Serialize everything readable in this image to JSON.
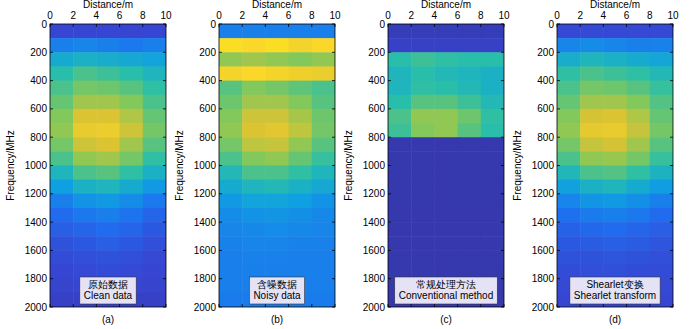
{
  "chart_data": [
    {
      "type": "heatmap",
      "title": "(a)",
      "annotations": [
        "原始数据",
        "Clean data"
      ],
      "x_label": "Distance/m",
      "y_label": "Frequency/MHz",
      "xlim": [
        0,
        10
      ],
      "xticks": [
        0,
        2,
        4,
        6,
        8,
        10
      ],
      "ylim": [
        2000,
        0
      ],
      "yticks": [
        0,
        200,
        400,
        600,
        800,
        1000,
        1200,
        1400,
        1600,
        1800,
        2000
      ],
      "zlim": [
        0,
        1
      ],
      "x_bins": [
        0,
        2,
        4,
        6,
        8,
        10
      ],
      "y_bins": [
        0,
        100,
        200,
        300,
        400,
        500,
        600,
        700,
        800,
        900,
        1000,
        1100,
        1200,
        1300,
        1400,
        1500,
        1600,
        1700,
        1800,
        1900,
        2000
      ],
      "cells": [
        [
          0.12,
          0.12,
          0.12,
          0.12,
          0.12
        ],
        [
          0.3,
          0.32,
          0.3,
          0.28,
          0.3
        ],
        [
          0.45,
          0.48,
          0.46,
          0.44,
          0.42
        ],
        [
          0.55,
          0.6,
          0.58,
          0.55,
          0.5
        ],
        [
          0.6,
          0.66,
          0.65,
          0.62,
          0.56
        ],
        [
          0.64,
          0.72,
          0.72,
          0.68,
          0.6
        ],
        [
          0.68,
          0.8,
          0.8,
          0.74,
          0.64
        ],
        [
          0.7,
          0.84,
          0.85,
          0.78,
          0.66
        ],
        [
          0.66,
          0.78,
          0.8,
          0.72,
          0.62
        ],
        [
          0.6,
          0.7,
          0.72,
          0.66,
          0.56
        ],
        [
          0.5,
          0.6,
          0.62,
          0.56,
          0.48
        ],
        [
          0.4,
          0.48,
          0.5,
          0.45,
          0.38
        ],
        [
          0.3,
          0.36,
          0.38,
          0.34,
          0.28
        ],
        [
          0.24,
          0.28,
          0.3,
          0.27,
          0.22
        ],
        [
          0.2,
          0.22,
          0.24,
          0.22,
          0.18
        ],
        [
          0.16,
          0.18,
          0.2,
          0.18,
          0.15
        ],
        [
          0.14,
          0.15,
          0.16,
          0.15,
          0.13
        ],
        [
          0.12,
          0.13,
          0.14,
          0.13,
          0.12
        ],
        [
          0.11,
          0.12,
          0.12,
          0.12,
          0.11
        ],
        [
          0.1,
          0.1,
          0.1,
          0.1,
          0.1
        ]
      ]
    },
    {
      "type": "heatmap",
      "title": "(b)",
      "annotations": [
        "含噪数据",
        "Noisy data"
      ],
      "x_label": "Distance/m",
      "y_label": "Frequency/MHz",
      "xlim": [
        0,
        10
      ],
      "xticks": [
        0,
        2,
        4,
        6,
        8,
        10
      ],
      "ylim": [
        2000,
        0
      ],
      "yticks": [
        0,
        200,
        400,
        600,
        800,
        1000,
        1200,
        1400,
        1600,
        1800,
        2000
      ],
      "zlim": [
        0,
        1
      ],
      "x_bins": [
        0,
        2,
        4,
        6,
        8,
        10
      ],
      "y_bins": [
        0,
        100,
        200,
        300,
        400,
        500,
        600,
        700,
        800,
        900,
        1000,
        1100,
        1200,
        1300,
        1400,
        1500,
        1600,
        1700,
        1800,
        1900,
        2000
      ],
      "cells": [
        [
          0.3,
          0.3,
          0.3,
          0.3,
          0.3
        ],
        [
          0.92,
          0.9,
          0.92,
          0.88,
          0.9
        ],
        [
          0.7,
          0.72,
          0.7,
          0.68,
          0.7
        ],
        [
          0.88,
          0.9,
          0.88,
          0.86,
          0.85
        ],
        [
          0.62,
          0.68,
          0.66,
          0.63,
          0.6
        ],
        [
          0.65,
          0.72,
          0.72,
          0.68,
          0.62
        ],
        [
          0.68,
          0.78,
          0.78,
          0.73,
          0.65
        ],
        [
          0.7,
          0.8,
          0.82,
          0.76,
          0.66
        ],
        [
          0.66,
          0.76,
          0.77,
          0.7,
          0.62
        ],
        [
          0.6,
          0.68,
          0.7,
          0.64,
          0.57
        ],
        [
          0.52,
          0.6,
          0.6,
          0.56,
          0.5
        ],
        [
          0.45,
          0.5,
          0.52,
          0.48,
          0.44
        ],
        [
          0.38,
          0.42,
          0.42,
          0.4,
          0.36
        ],
        [
          0.34,
          0.36,
          0.37,
          0.35,
          0.33
        ],
        [
          0.32,
          0.33,
          0.34,
          0.33,
          0.32
        ],
        [
          0.31,
          0.32,
          0.32,
          0.31,
          0.31
        ],
        [
          0.3,
          0.31,
          0.31,
          0.3,
          0.3
        ],
        [
          0.3,
          0.3,
          0.3,
          0.3,
          0.3
        ],
        [
          0.3,
          0.3,
          0.3,
          0.3,
          0.3
        ],
        [
          0.29,
          0.29,
          0.29,
          0.29,
          0.29
        ]
      ]
    },
    {
      "type": "heatmap",
      "title": "(c)",
      "annotations": [
        "常规处理方法",
        "Conventional method"
      ],
      "x_label": "Distance/m",
      "y_label": "Frequency/MHz",
      "xlim": [
        0,
        10
      ],
      "xticks": [
        0,
        2,
        4,
        6,
        8,
        10
      ],
      "ylim": [
        2000,
        0
      ],
      "yticks": [
        0,
        200,
        400,
        600,
        800,
        1000,
        1200,
        1400,
        1600,
        1800,
        2000
      ],
      "zlim": [
        0,
        1
      ],
      "x_bins": [
        0,
        2,
        4,
        6,
        8,
        10
      ],
      "y_bins": [
        0,
        100,
        200,
        300,
        400,
        500,
        600,
        700,
        800,
        900,
        1000,
        1100,
        1200,
        1300,
        1400,
        1500,
        1600,
        1700,
        1800,
        1900,
        2000
      ],
      "cells": [
        [
          0.08,
          0.08,
          0.08,
          0.08,
          0.08
        ],
        [
          0.1,
          0.1,
          0.1,
          0.1,
          0.1
        ],
        [
          0.55,
          0.58,
          0.56,
          0.55,
          0.55
        ],
        [
          0.5,
          0.55,
          0.52,
          0.5,
          0.48
        ],
        [
          0.5,
          0.56,
          0.55,
          0.52,
          0.48
        ],
        [
          0.55,
          0.62,
          0.62,
          0.58,
          0.52
        ],
        [
          0.6,
          0.7,
          0.7,
          0.65,
          0.56
        ],
        [
          0.58,
          0.68,
          0.7,
          0.62,
          0.55
        ],
        [
          0.06,
          0.06,
          0.06,
          0.06,
          0.06
        ],
        [
          0.06,
          0.06,
          0.06,
          0.06,
          0.06
        ],
        [
          0.06,
          0.06,
          0.06,
          0.06,
          0.06
        ],
        [
          0.06,
          0.06,
          0.06,
          0.06,
          0.06
        ],
        [
          0.06,
          0.06,
          0.06,
          0.06,
          0.06
        ],
        [
          0.06,
          0.06,
          0.06,
          0.06,
          0.06
        ],
        [
          0.06,
          0.06,
          0.06,
          0.06,
          0.06
        ],
        [
          0.06,
          0.06,
          0.06,
          0.06,
          0.06
        ],
        [
          0.06,
          0.06,
          0.06,
          0.06,
          0.06
        ],
        [
          0.06,
          0.06,
          0.06,
          0.06,
          0.06
        ],
        [
          0.06,
          0.06,
          0.06,
          0.06,
          0.06
        ],
        [
          0.06,
          0.06,
          0.06,
          0.06,
          0.06
        ]
      ]
    },
    {
      "type": "heatmap",
      "title": "(d)",
      "annotations": [
        "Shearlet变换",
        "Shearlet transform"
      ],
      "x_label": "Distance/m",
      "y_label": "Frequency/MHz",
      "xlim": [
        0,
        10
      ],
      "xticks": [
        0,
        2,
        4,
        6,
        8,
        10
      ],
      "ylim": [
        2000,
        0
      ],
      "yticks": [
        0,
        200,
        400,
        600,
        800,
        1000,
        1200,
        1400,
        1600,
        1800,
        2000
      ],
      "zlim": [
        0,
        1
      ],
      "x_bins": [
        0,
        2,
        4,
        6,
        8,
        10
      ],
      "y_bins": [
        0,
        100,
        200,
        300,
        400,
        500,
        600,
        700,
        800,
        900,
        1000,
        1100,
        1200,
        1300,
        1400,
        1500,
        1600,
        1700,
        1800,
        1900,
        2000
      ],
      "cells": [
        [
          0.13,
          0.13,
          0.13,
          0.13,
          0.13
        ],
        [
          0.32,
          0.34,
          0.32,
          0.3,
          0.31
        ],
        [
          0.46,
          0.5,
          0.48,
          0.45,
          0.43
        ],
        [
          0.56,
          0.6,
          0.58,
          0.56,
          0.52
        ],
        [
          0.6,
          0.66,
          0.65,
          0.62,
          0.57
        ],
        [
          0.64,
          0.72,
          0.72,
          0.68,
          0.61
        ],
        [
          0.68,
          0.79,
          0.8,
          0.74,
          0.64
        ],
        [
          0.7,
          0.83,
          0.84,
          0.77,
          0.66
        ],
        [
          0.66,
          0.77,
          0.79,
          0.72,
          0.62
        ],
        [
          0.6,
          0.7,
          0.71,
          0.66,
          0.57
        ],
        [
          0.51,
          0.6,
          0.61,
          0.56,
          0.49
        ],
        [
          0.41,
          0.48,
          0.5,
          0.45,
          0.39
        ],
        [
          0.32,
          0.37,
          0.38,
          0.35,
          0.3
        ],
        [
          0.26,
          0.29,
          0.3,
          0.28,
          0.24
        ],
        [
          0.21,
          0.23,
          0.24,
          0.22,
          0.2
        ],
        [
          0.18,
          0.19,
          0.2,
          0.19,
          0.17
        ],
        [
          0.16,
          0.16,
          0.17,
          0.16,
          0.15
        ],
        [
          0.14,
          0.15,
          0.15,
          0.14,
          0.14
        ],
        [
          0.13,
          0.13,
          0.13,
          0.13,
          0.13
        ],
        [
          0.12,
          0.12,
          0.12,
          0.12,
          0.12
        ]
      ]
    }
  ]
}
